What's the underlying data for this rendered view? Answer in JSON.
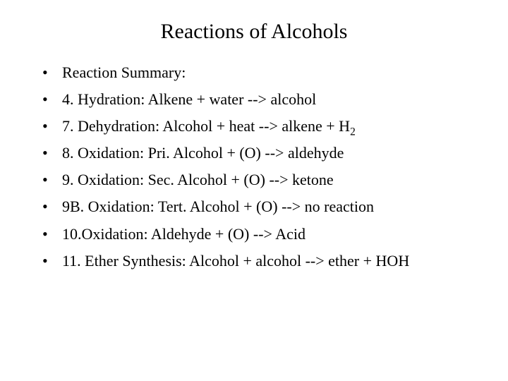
{
  "slide": {
    "title": "Reactions of Alcohols",
    "title_fontsize": 30,
    "body_fontsize": 22,
    "background_color": "#ffffff",
    "text_color": "#000000",
    "font_family": "Times New Roman",
    "bullets": [
      {
        "text": "Reaction Summary:"
      },
      {
        "text": "4.  Hydration:  Alkene + water -->  alcohol"
      },
      {
        "prefix": "7.  Dehydration:  Alcohol + heat --> alkene + H",
        "sub": "2"
      },
      {
        "text": "8.  Oxidation:  Pri. Alcohol +  (O) --> aldehyde"
      },
      {
        "text": "9.  Oxidation:  Sec. Alcohol +  (O) --> ketone"
      },
      {
        "text": "9B.  Oxidation: Tert. Alcohol + (O) --> no reaction"
      },
      {
        "text": "10.Oxidation: Aldehyde + (O) --> Acid"
      },
      {
        "text": "11. Ether Synthesis:  Alcohol + alcohol --> ether + HOH"
      }
    ]
  }
}
